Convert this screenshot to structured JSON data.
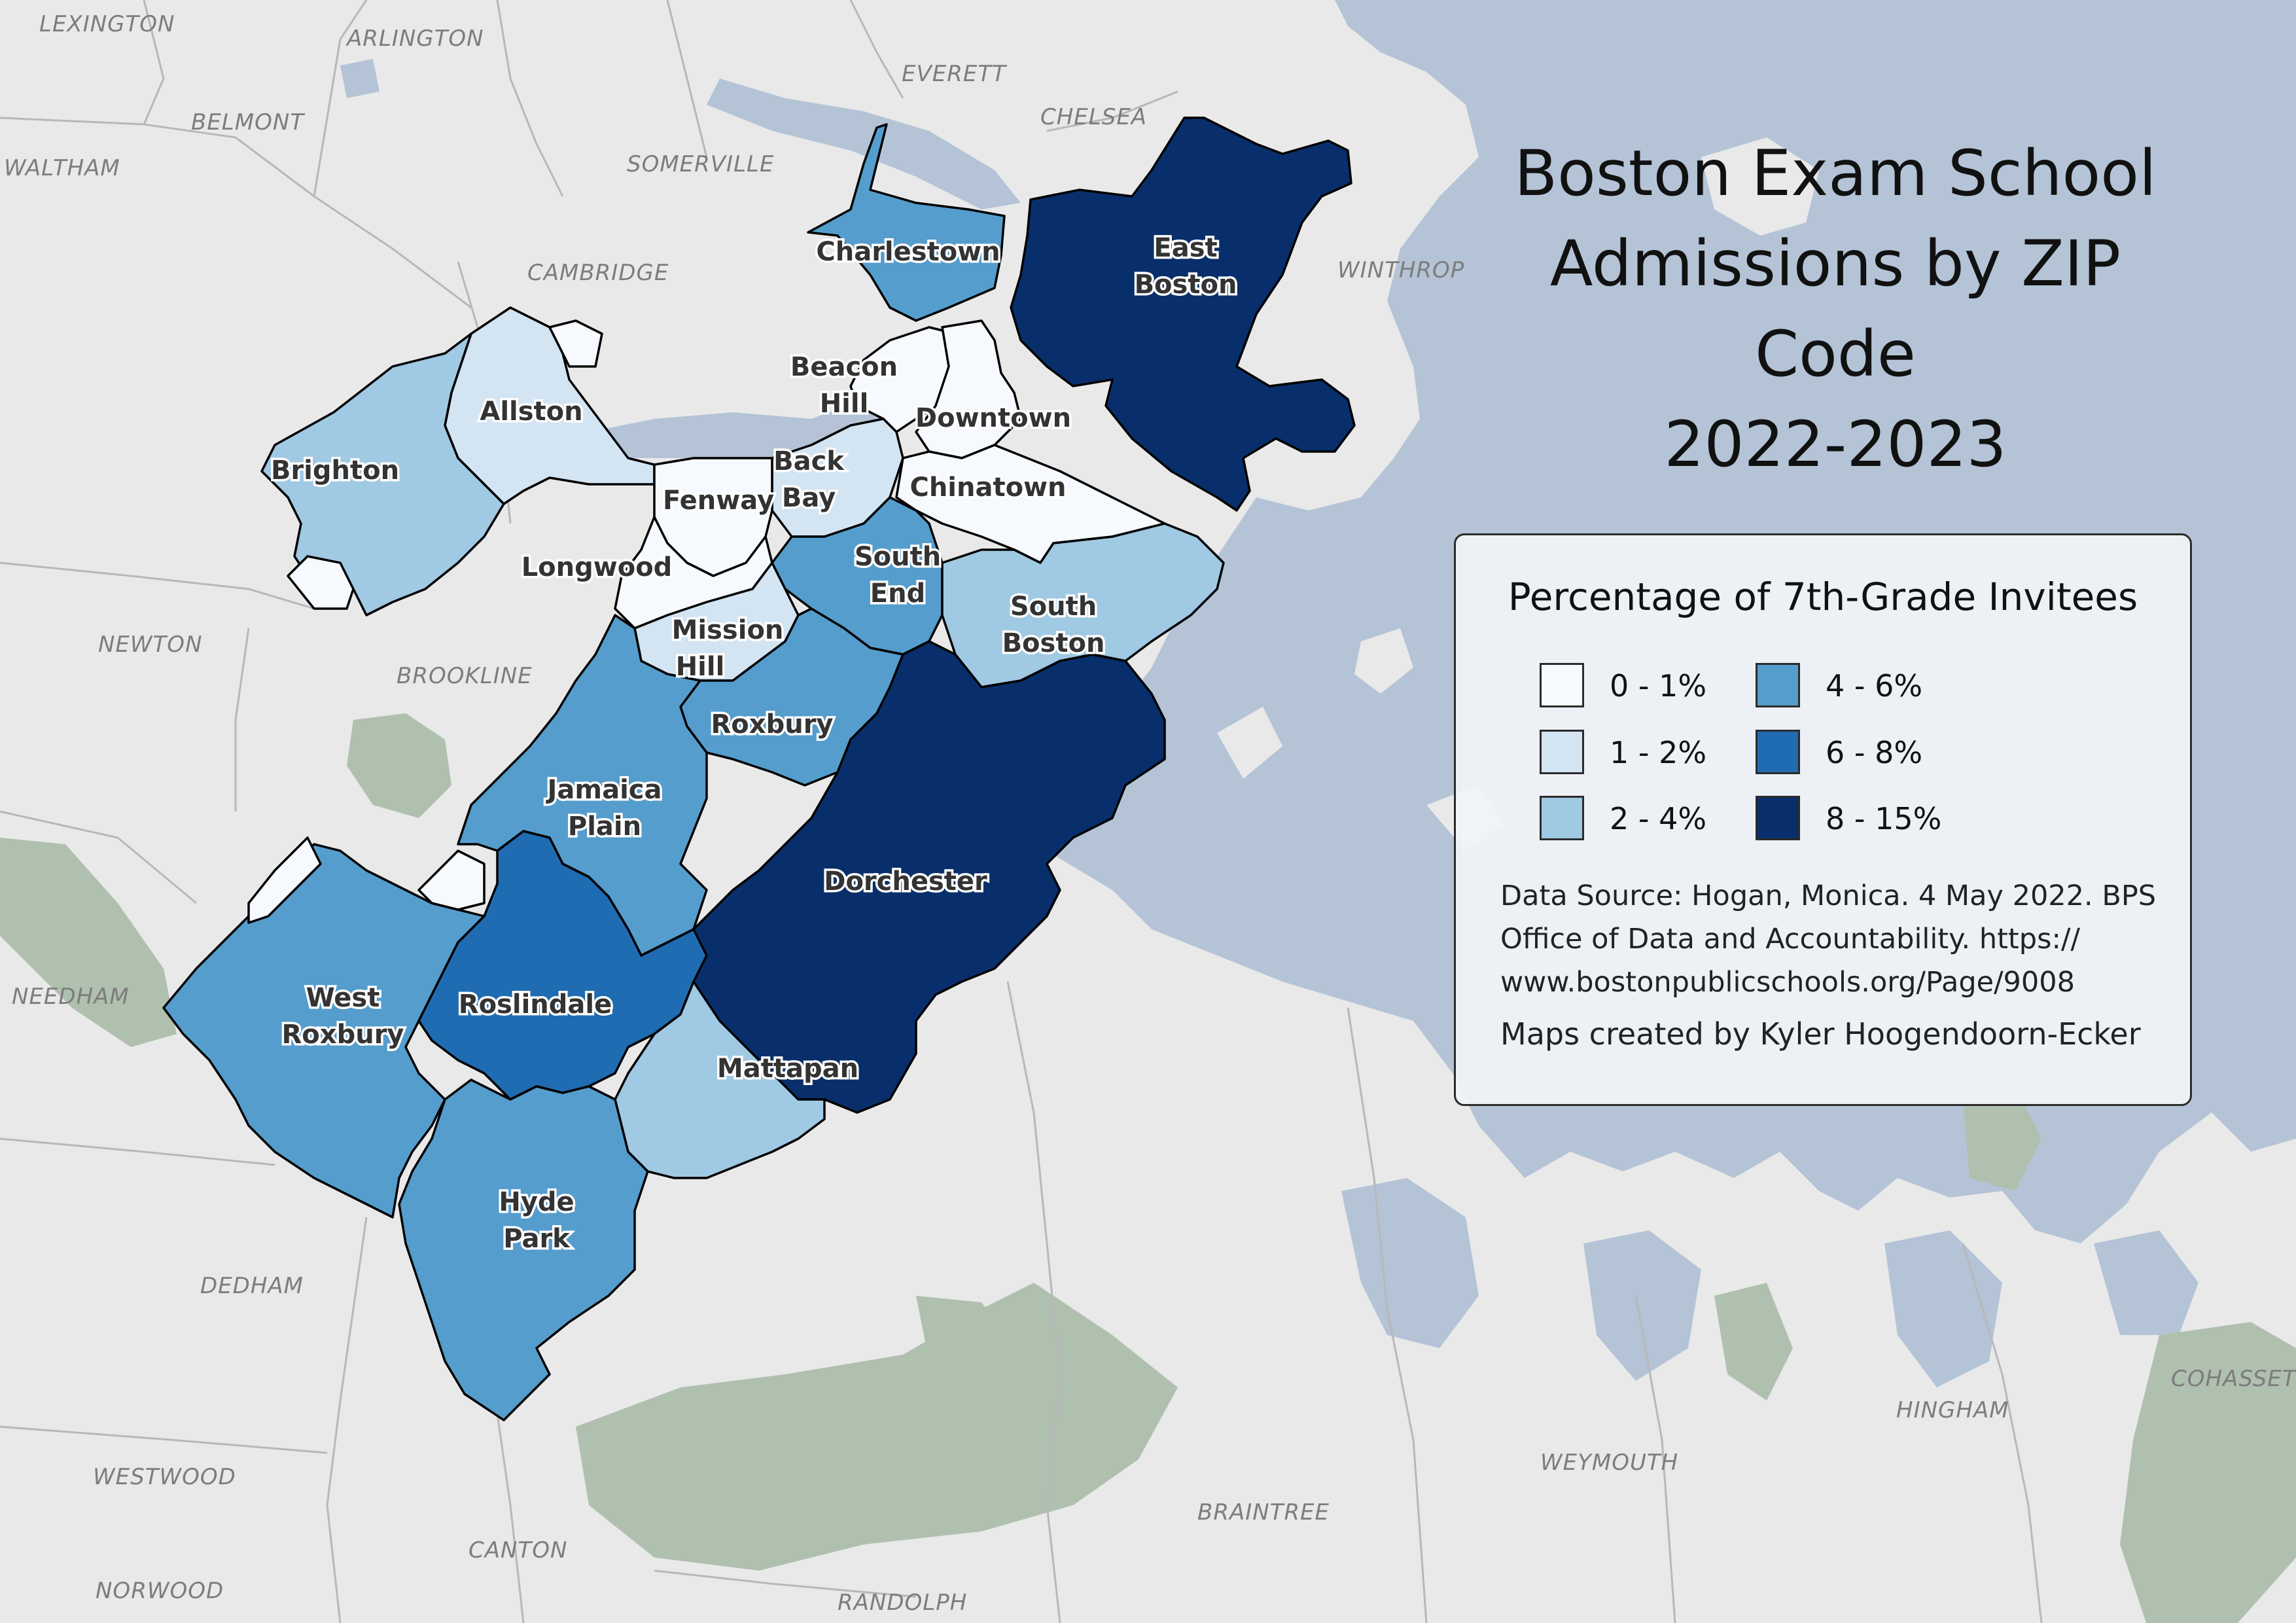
{
  "title_lines": [
    "Boston Exam School",
    "Admissions by ZIP",
    "Code",
    "2022-2023"
  ],
  "legend": {
    "title": "Percentage of 7th-Grade Invitees",
    "classes": [
      {
        "label": "0 - 1%",
        "color": "#f6f9fd"
      },
      {
        "label": "1 - 2%",
        "color": "#d3e4f3"
      },
      {
        "label": "2 - 4%",
        "color": "#a0c9e3"
      },
      {
        "label": "4 - 6%",
        "color": "#559dcd"
      },
      {
        "label": "6 - 8%",
        "color": "#1f6cb2"
      },
      {
        "label": "8 - 15%",
        "color": "#082f6b"
      }
    ]
  },
  "source_lines": [
    "Data Source: Hogan, Monica. 4 May 2022. BPS",
    "Office of Data and Accountability. https://",
    "www.bostonpublicschools.org/Page/9008"
  ],
  "credit": "Maps created by Kyler Hoogendoorn-Ecker",
  "towns": {
    "lexington": "LEXINGTON",
    "arlington": "ARLINGTON",
    "belmont": "BELMONT",
    "waltham": "WALTHAM",
    "somerville": "SOMERVILLE",
    "everett": "EVERETT",
    "chelsea": "CHELSEA",
    "cambridge": "CAMBRIDGE",
    "winthrop": "WINTHROP",
    "newton": "NEWTON",
    "brookline": "BROOKLINE",
    "needham": "NEEDHAM",
    "dedham": "DEDHAM",
    "westwood": "WESTWOOD",
    "canton": "CANTON",
    "norwood": "NORWOOD",
    "randolph": "RANDOLPH",
    "braintree": "BRAINTREE",
    "weymouth": "WEYMOUTH",
    "hingham": "HINGHAM",
    "cohasset": "COHASSET"
  },
  "neighborhoods": [
    {
      "id": "charlestown",
      "lines": [
        "Charlestown"
      ],
      "class": "4 - 6%"
    },
    {
      "id": "east-boston",
      "lines": [
        "East",
        "Boston"
      ],
      "class": "8 - 15%"
    },
    {
      "id": "beacon-hill",
      "lines": [
        "Beacon",
        "Hill"
      ],
      "class": "0 - 1%"
    },
    {
      "id": "downtown",
      "lines": [
        "Downtown"
      ],
      "class": "0 - 1%"
    },
    {
      "id": "allston",
      "lines": [
        "Allston"
      ],
      "class": "1 - 2%"
    },
    {
      "id": "brighton",
      "lines": [
        "Brighton"
      ],
      "class": "2 - 4%"
    },
    {
      "id": "back-bay",
      "lines": [
        "Back",
        "Bay"
      ],
      "class": "1 - 2%"
    },
    {
      "id": "fenway",
      "lines": [
        "Fenway"
      ],
      "class": "0 - 1%"
    },
    {
      "id": "chinatown",
      "lines": [
        "Chinatown"
      ],
      "class": "0 - 1%"
    },
    {
      "id": "longwood",
      "lines": [
        "Longwood"
      ],
      "class": "0 - 1%"
    },
    {
      "id": "south-end",
      "lines": [
        "South",
        "End"
      ],
      "class": "4 - 6%"
    },
    {
      "id": "south-boston",
      "lines": [
        "South",
        "Boston"
      ],
      "class": "2 - 4%"
    },
    {
      "id": "mission-hill",
      "lines": [
        "Mission",
        "Hill"
      ],
      "class": "1 - 2%"
    },
    {
      "id": "roxbury",
      "lines": [
        "Roxbury"
      ],
      "class": "4 - 6%"
    },
    {
      "id": "jamaica-plain",
      "lines": [
        "Jamaica",
        "Plain"
      ],
      "class": "4 - 6%"
    },
    {
      "id": "dorchester",
      "lines": [
        "Dorchester"
      ],
      "class": "8 - 15%"
    },
    {
      "id": "west-roxbury",
      "lines": [
        "West",
        "Roxbury"
      ],
      "class": "4 - 6%"
    },
    {
      "id": "roslindale",
      "lines": [
        "Roslindale"
      ],
      "class": "6 - 8%"
    },
    {
      "id": "mattapan",
      "lines": [
        "Mattapan"
      ],
      "class": "2 - 4%"
    },
    {
      "id": "hyde-park",
      "lines": [
        "Hyde",
        "Park"
      ],
      "class": "4 - 6%"
    }
  ],
  "colors": {
    "water": "#b4c4d6",
    "land": "#e9e9ea",
    "park": "#b0c0ae",
    "town_border": "#b8b8bb"
  }
}
